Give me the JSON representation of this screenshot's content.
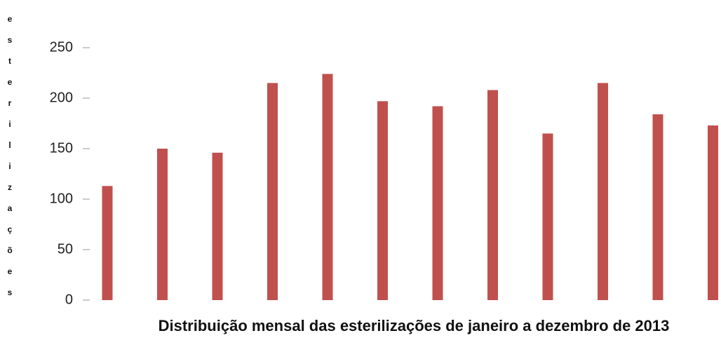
{
  "chart_data": {
    "type": "bar",
    "y_label": "esterilizações",
    "x_label": "Distribuição mensal das esterilizações de janeiro a dezembro de 2013",
    "categories": [
      null,
      null,
      null,
      null,
      null,
      null,
      null,
      null,
      null,
      null,
      null,
      null
    ],
    "values": [
      113,
      150,
      146,
      215,
      224,
      197,
      192,
      208,
      165,
      215,
      184,
      173
    ],
    "color": "#c0504d",
    "ylim": [
      0,
      250
    ],
    "yticks": [
      0,
      50,
      100,
      150,
      200,
      250
    ],
    "grid": false
  }
}
